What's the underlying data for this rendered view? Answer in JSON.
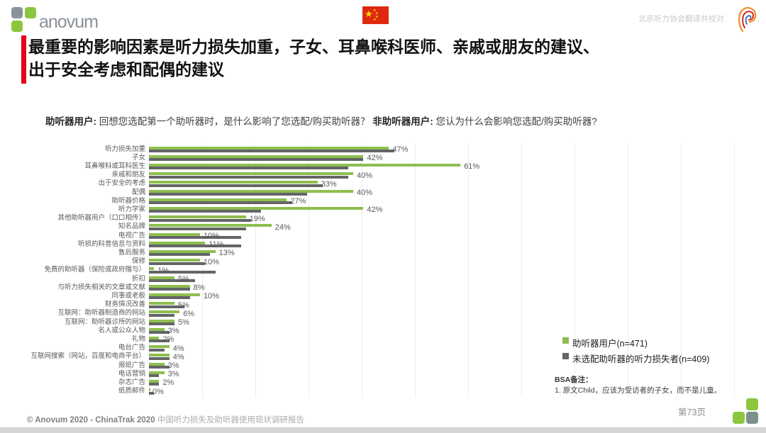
{
  "header": {
    "logo_text": "anovum",
    "proofread_note": "北京听力协会翻译并校对",
    "title_line1": "最重要的影响因素是听力损失加重，子女、耳鼻喉科医师、亲戚或朋友的建议、",
    "title_line2": "出于安全考虑和配偶的建议"
  },
  "subtitle": {
    "q1_label": "助听器用户:",
    "q1_text": " 回想您选配第一个助听器时，是什么影响了您选配/购买助听器？ ",
    "q2_label": "非助听器用户:",
    "q2_text": " 您认为什么会影响您选配/购买助听器?"
  },
  "chart_data": {
    "type": "bar",
    "orientation": "horizontal",
    "title": "",
    "xlabel": "",
    "ylabel": "",
    "axis_max_pct": 115,
    "grid": "vertical, every 10%, light gray",
    "value_label_series": "助听器用户(n=471)",
    "categories": [
      "听力损失加重",
      "子女",
      "耳鼻喉科或耳科医生",
      "亲戚和朋友",
      "出于安全的考虑",
      "配偶",
      "助听器价格",
      "听力学家",
      "其他助听器用户（口口相传）",
      "知名品牌",
      "电视广告",
      "听损的科普信息与资料",
      "售后服务",
      "保修",
      "免费的助听器（保险或政府赠与）",
      "折扣",
      "与听力损失相关的文章或文献",
      "同事或老板",
      "财务情况改善",
      "互联网：助听器制造商的网站",
      "互联网：助听器诊所的网站",
      "名人或公众人物",
      "礼物",
      "电台广告",
      "互联网搜索（网站，百度和电商平台）",
      "报纸广告",
      "电话营销",
      "杂志广告",
      "纸质邮件"
    ],
    "series": [
      {
        "name": "助听器用户(n=471)",
        "color": "#8ebe4f",
        "values": [
          47,
          42,
          61,
          40,
          33,
          40,
          27,
          42,
          19,
          24,
          10,
          11,
          13,
          10,
          1,
          5,
          8,
          10,
          5,
          6,
          5,
          3,
          2,
          4,
          4,
          3,
          3,
          2,
          0
        ],
        "labels_shown": true,
        "unit": "%"
      },
      {
        "name": "未选配助听器的听力损失者(n=409)",
        "color": "#636567",
        "values": [
          48,
          42,
          39,
          39,
          34,
          31,
          28,
          22,
          20,
          19,
          18,
          18,
          12,
          11,
          13,
          9,
          8,
          8,
          7,
          5,
          5,
          4,
          4,
          3,
          4,
          4,
          2,
          2,
          1
        ],
        "labels_shown": false,
        "unit": "%"
      }
    ]
  },
  "legend": {
    "items": [
      {
        "label": "助听器用户(n=471)",
        "color": "#8ebe4f"
      },
      {
        "label": "未选配助听器的听力损失者(n=409)",
        "color": "#636567"
      }
    ]
  },
  "notes": {
    "title": "BSA备注：",
    "item1": "1.   原文Child，应该为受访者的子女，而不是儿童。"
  },
  "footer": {
    "copyright": "© Anovum 2020 - ChinaTrak 2020",
    "report": "中国听力损失及助听器使用现状调研报告",
    "page": "第73页"
  },
  "colors": {
    "accent_red": "#e2001a",
    "logo_green": "#8cc63f",
    "logo_gray": "#8a929b",
    "footer_logo_gray_green": "#7d908e",
    "flag_red": "#de2910",
    "flag_yellow": "#ffde00"
  }
}
